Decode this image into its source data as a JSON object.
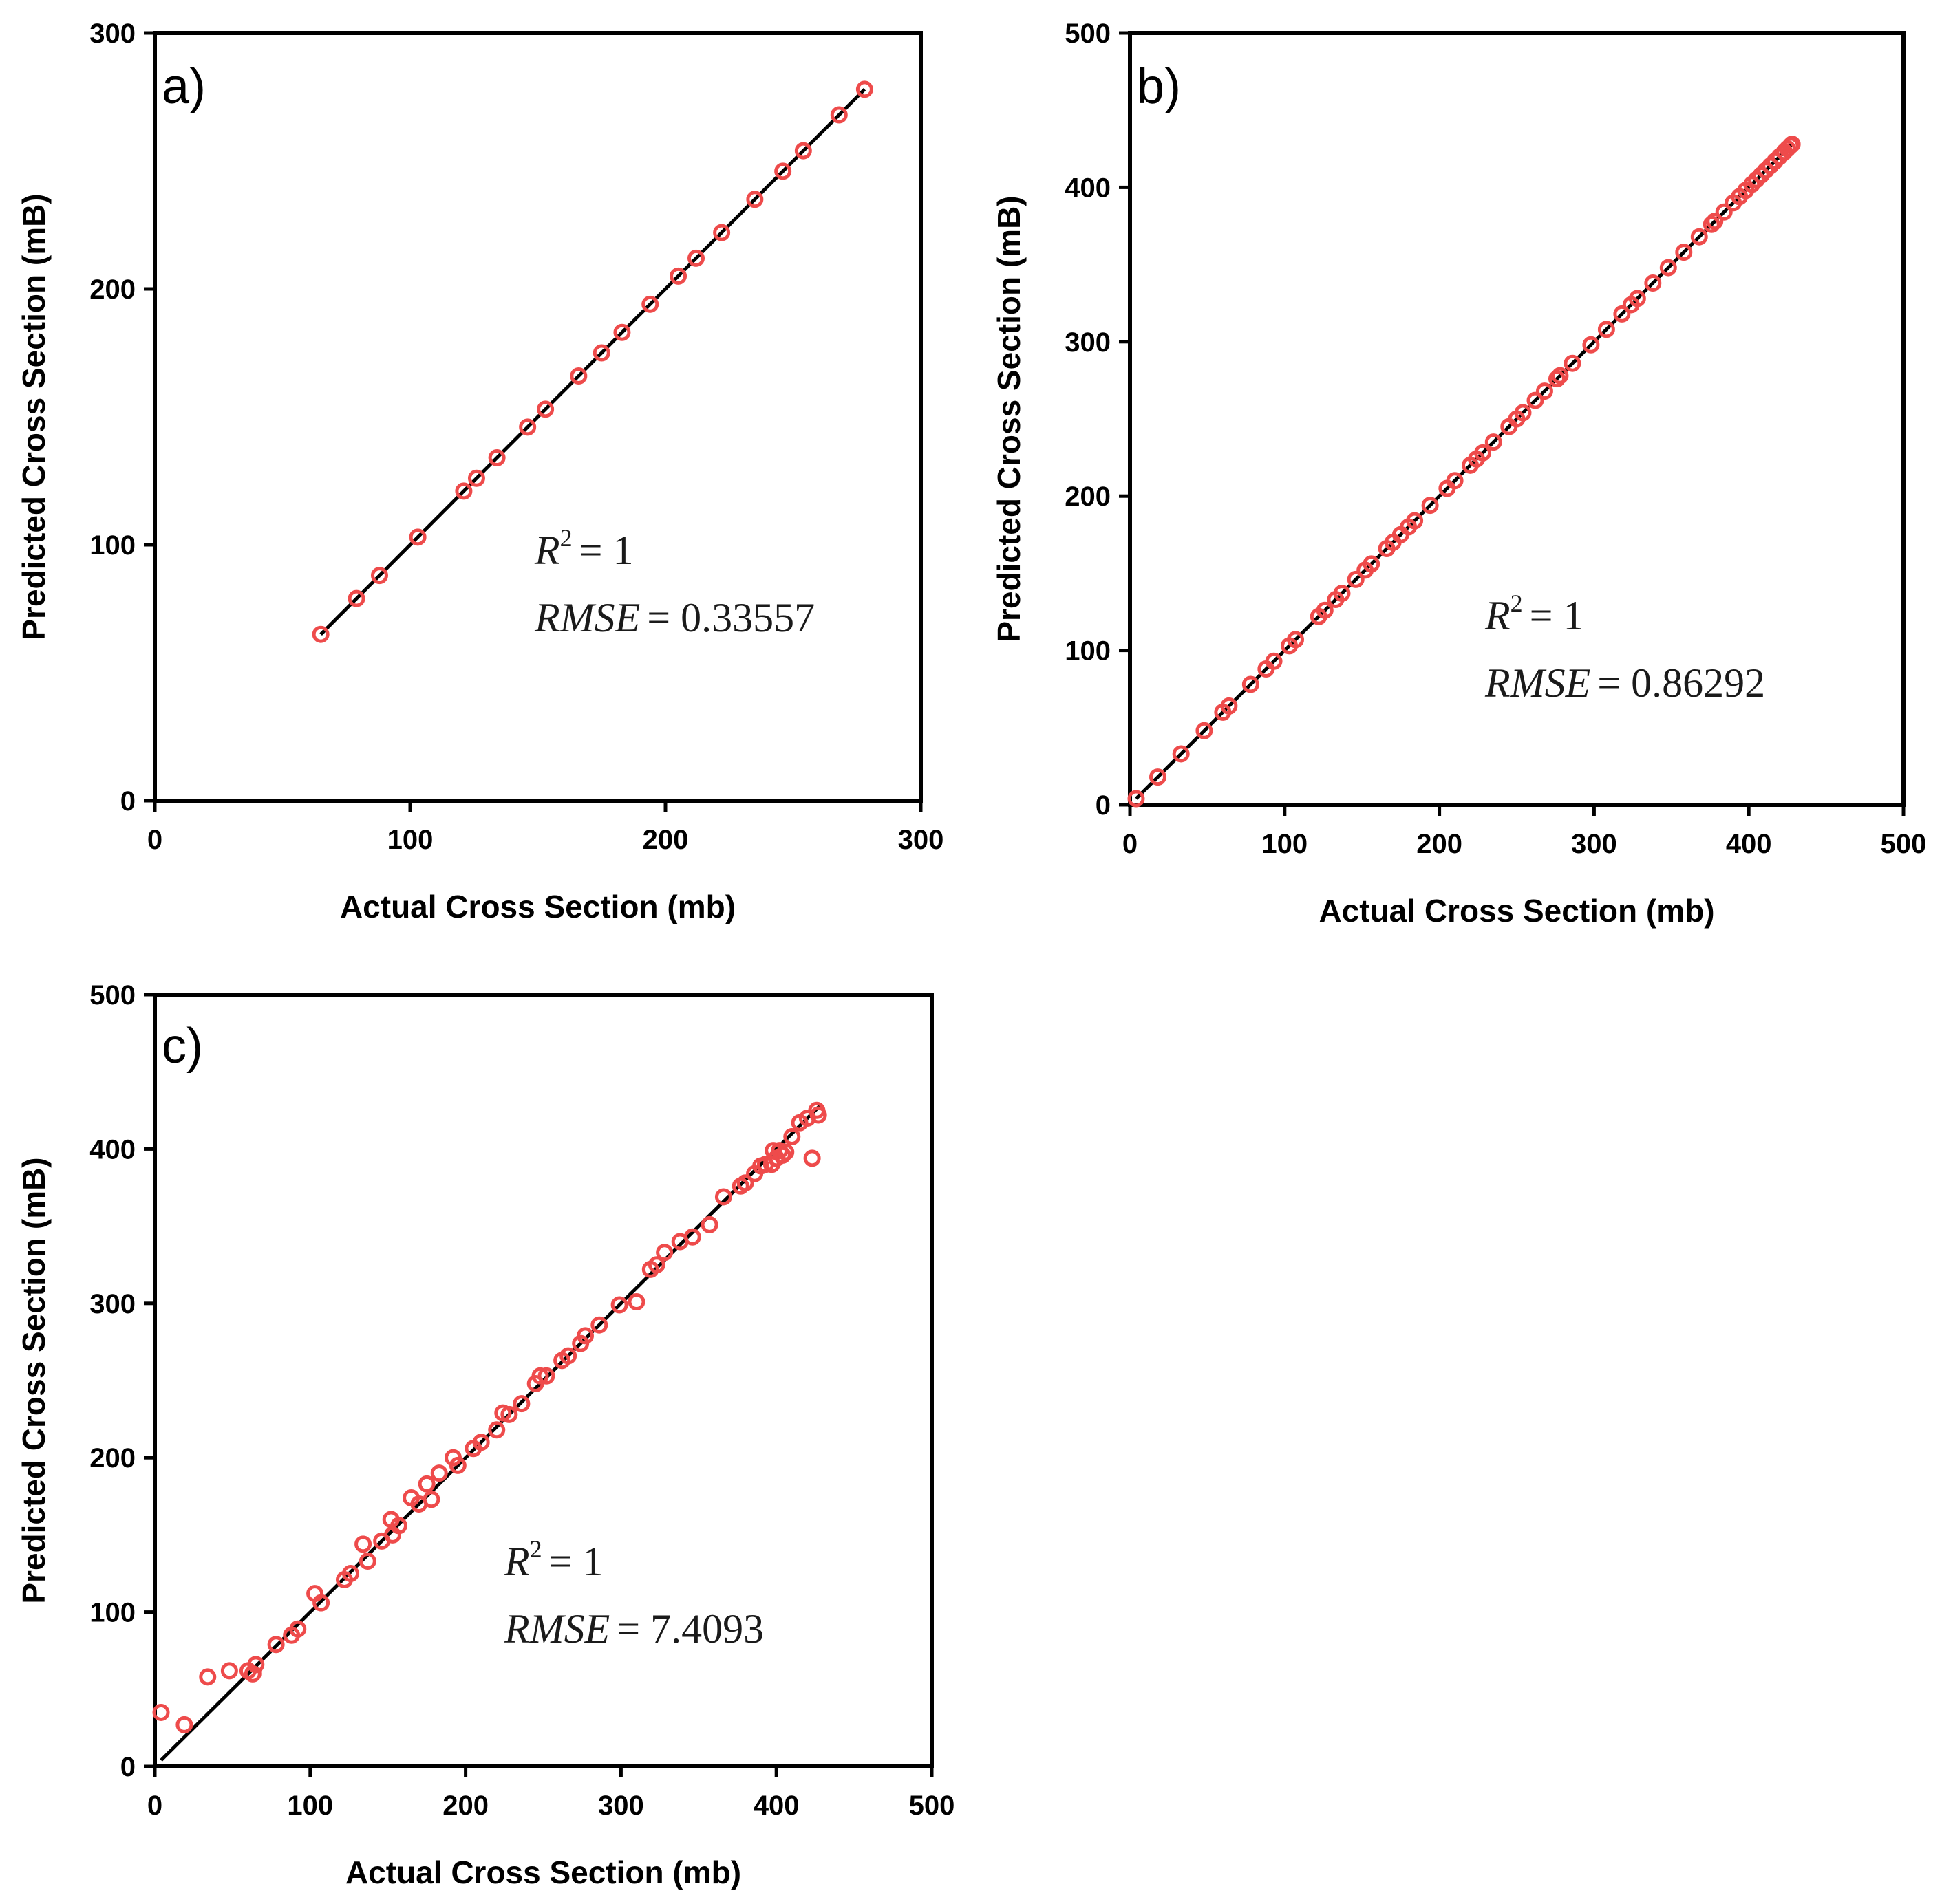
{
  "colors": {
    "points": "#ee4b4b",
    "fit_line": "#000000",
    "axes": "#000000"
  },
  "chart_data": [
    {
      "id": "a",
      "type": "scatter",
      "panel_label": "a)",
      "xlabel": "Actual Cross Section (mb)",
      "ylabel": "Predicted Cross Section (mB)",
      "xlim": [
        0,
        300
      ],
      "ylim": [
        0,
        300
      ],
      "xticks": [
        "0",
        "100",
        "200",
        "300"
      ],
      "yticks": [
        "0",
        "100",
        "200",
        "300"
      ],
      "fit_line": {
        "from": [
          65,
          65
        ],
        "to": [
          278,
          278
        ]
      },
      "r2_label": "R",
      "r2_sup": "2",
      "r2_value": "= 1",
      "rmse_label": "RMSE",
      "rmse_value": "= 0.33557",
      "points": {
        "x": [
          65,
          79,
          88,
          103,
          121,
          126,
          134,
          146,
          153,
          166,
          175,
          183,
          194,
          205,
          212,
          222,
          235,
          246,
          254,
          268,
          278
        ],
        "y": [
          65,
          79,
          88,
          103,
          121,
          126,
          134,
          146,
          153,
          166,
          175,
          183,
          194,
          205,
          212,
          222,
          235,
          246,
          254,
          268,
          278
        ]
      }
    },
    {
      "id": "b",
      "type": "scatter",
      "panel_label": "b)",
      "xlabel": "Actual Cross Section (mb)",
      "ylabel": "Predicted Cross Section (mB)",
      "xlim": [
        0,
        500
      ],
      "ylim": [
        0,
        500
      ],
      "xticks": [
        "0",
        "100",
        "200",
        "300",
        "400",
        "500"
      ],
      "yticks": [
        "0",
        "100",
        "200",
        "300",
        "400",
        "500"
      ],
      "fit_line": {
        "from": [
          4,
          4
        ],
        "to": [
          428,
          428
        ]
      },
      "r2_label": "R",
      "r2_sup": "2",
      "r2_value": "= 1",
      "rmse_label": "RMSE",
      "rmse_value": "= 0.86292",
      "points": {
        "x": [
          4,
          18,
          33,
          48,
          60,
          64,
          78,
          88,
          93,
          103,
          107,
          122,
          126,
          133,
          137,
          146,
          152,
          156,
          166,
          170,
          175,
          180,
          184,
          194,
          205,
          210,
          220,
          224,
          228,
          235,
          245,
          250,
          254,
          262,
          268,
          276,
          278,
          286,
          298,
          308,
          318,
          324,
          328,
          338,
          348,
          358,
          368,
          376,
          378,
          384,
          390,
          394,
          398,
          402,
          405,
          408,
          411,
          414,
          417,
          420,
          423,
          425,
          427,
          428
        ],
        "y": [
          4,
          18,
          33,
          48,
          60,
          64,
          78,
          88,
          93,
          103,
          107,
          122,
          126,
          133,
          137,
          146,
          152,
          156,
          166,
          170,
          175,
          180,
          184,
          194,
          205,
          210,
          220,
          224,
          228,
          235,
          245,
          250,
          254,
          262,
          268,
          276,
          278,
          286,
          298,
          308,
          318,
          324,
          328,
          338,
          348,
          358,
          368,
          376,
          378,
          384,
          390,
          394,
          398,
          402,
          405,
          408,
          411,
          414,
          417,
          420,
          423,
          425,
          427,
          428
        ]
      }
    },
    {
      "id": "c",
      "type": "scatter",
      "panel_label": "c)",
      "xlabel": "Actual Cross Section (mb)",
      "ylabel": "Predicted Cross Section (mB)",
      "xlim": [
        0,
        500
      ],
      "ylim": [
        0,
        500
      ],
      "xticks": [
        "0",
        "100",
        "200",
        "300",
        "400",
        "500"
      ],
      "yticks": [
        "0",
        "100",
        "200",
        "300",
        "400",
        "500"
      ],
      "fit_line": {
        "from": [
          4,
          4
        ],
        "to": [
          428,
          428
        ]
      },
      "r2_label": "R",
      "r2_sup": "2",
      "r2_value": "= 1",
      "rmse_label": "RMSE",
      "rmse_value": "= 7.4093",
      "points": {
        "x": [
          4,
          19,
          34,
          48,
          60,
          63,
          65,
          78,
          88,
          92,
          103,
          107,
          122,
          126,
          134,
          137,
          146,
          152,
          153,
          157,
          165,
          170,
          175,
          178,
          183,
          192,
          195,
          205,
          210,
          220,
          224,
          228,
          236,
          245,
          248,
          252,
          262,
          266,
          274,
          277,
          286,
          299,
          310,
          319,
          323,
          328,
          338,
          346,
          357,
          366,
          377,
          380,
          386,
          390,
          393,
          397,
          398,
          400,
          402,
          404,
          406,
          410,
          415,
          420,
          423,
          426,
          427
        ],
        "y": [
          35,
          27,
          58,
          62,
          62,
          60,
          66,
          79,
          85,
          89,
          112,
          106,
          121,
          125,
          144,
          133,
          146,
          160,
          150,
          156,
          174,
          170,
          183,
          173,
          190,
          200,
          195,
          206,
          210,
          218,
          229,
          228,
          235,
          248,
          253,
          253,
          263,
          266,
          274,
          279,
          286,
          299,
          301,
          322,
          325,
          333,
          340,
          343,
          351,
          369,
          376,
          378,
          384,
          389,
          390,
          390,
          399,
          394,
          399,
          396,
          398,
          408,
          417,
          420,
          394,
          425,
          422
        ]
      }
    }
  ]
}
